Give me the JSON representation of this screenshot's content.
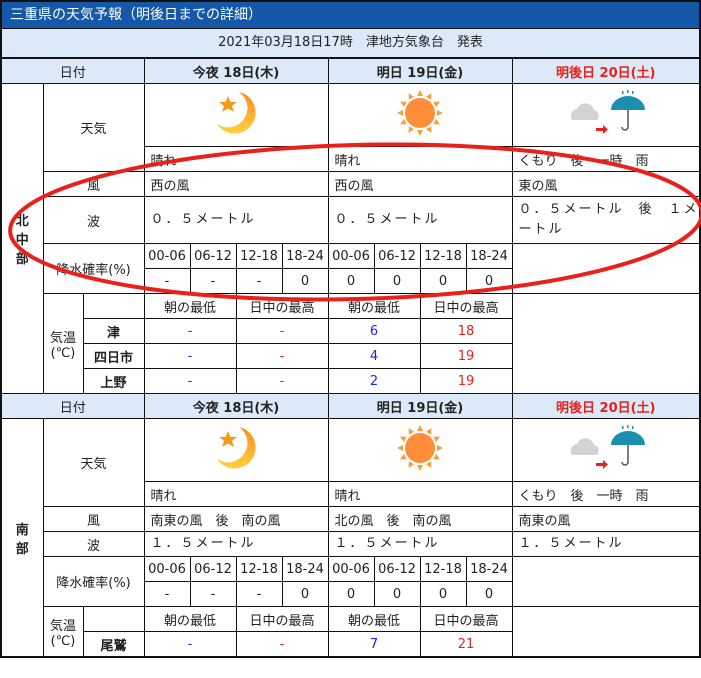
{
  "title": "三重県の天気予報（明後日までの詳細）",
  "issued": "2021年03月18日17時　津地方気象台　発表",
  "labels": {
    "date": "日付",
    "weather": "天気",
    "wind": "風",
    "wave": "波",
    "pop": "降水確率(%)",
    "temp": "気温",
    "temp_unit": "(℃)",
    "min": "朝の最低",
    "max": "日中の最高"
  },
  "days": [
    {
      "label": "今夜 18日(木)"
    },
    {
      "label": "明日 19日(金)"
    },
    {
      "label": "明後日 20日(土)",
      "color": "#e8211b"
    }
  ],
  "pop_periods": [
    "00-06",
    "06-12",
    "12-18",
    "18-24"
  ],
  "regions": [
    {
      "name": "北中部",
      "weather": [
        {
          "icon": "moon-star-icon",
          "text": "晴れ"
        },
        {
          "icon": "sun-icon",
          "text": "晴れ"
        },
        {
          "icon": "cloud-then-rain-icon",
          "text": "くもり　後　一時　雨"
        }
      ],
      "wind": [
        "西の風",
        "西の風",
        "東の風"
      ],
      "wave": [
        "０．５メートル",
        "０．５メートル",
        "０．５メートル　後　１メートル"
      ],
      "pop": [
        "-",
        "-",
        "-",
        "0",
        "0",
        "0",
        "0",
        "0"
      ],
      "cities": [
        {
          "name": "津",
          "vals": [
            "-",
            "-",
            "6",
            "18"
          ]
        },
        {
          "name": "四日市",
          "vals": [
            "-",
            "-",
            "4",
            "19"
          ]
        },
        {
          "name": "上野",
          "vals": [
            "-",
            "-",
            "2",
            "19"
          ]
        }
      ]
    },
    {
      "name": "南部",
      "weather": [
        {
          "icon": "moon-star-icon",
          "text": "晴れ"
        },
        {
          "icon": "sun-icon",
          "text": "晴れ"
        },
        {
          "icon": "cloud-then-rain-icon",
          "text": "くもり　後　一時　雨"
        }
      ],
      "wind": [
        "南東の風　後　南の風",
        "北の風　後　南の風",
        "南東の風"
      ],
      "wave": [
        "１．５メートル",
        "１．５メートル",
        "１．５メートル"
      ],
      "pop": [
        "-",
        "-",
        "-",
        "0",
        "0",
        "0",
        "0",
        "0"
      ],
      "cities": [
        {
          "name": "尾鷲",
          "vals": [
            "-",
            "-",
            "7",
            "21"
          ]
        }
      ]
    }
  ],
  "colors": {
    "header": "#1558a8",
    "subheader": "#dbe9f8",
    "max_temp": "#e8211b",
    "min_temp": "#2222ee",
    "annotation": "#e8211b"
  }
}
